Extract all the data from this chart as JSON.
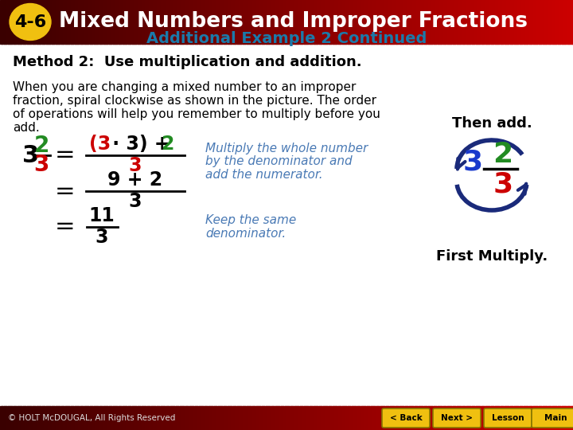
{
  "title_badge": "4-6",
  "title_text": "Mixed Numbers and Improper Fractions",
  "subtitle": "Additional Example 2 Continued",
  "method_heading": "Method 2:  Use multiplication and addition.",
  "body_lines": [
    "When you are changing a mixed number to an improper",
    "fraction, spiral clockwise as shown in the picture. The order",
    "of operations will help you remember to multiply before you",
    "add."
  ],
  "header_bg_left": "#3a0000",
  "header_bg_right": "#cc0000",
  "badge_bg": "#f0c010",
  "badge_text_color": "#000000",
  "header_text_color": "#ffffff",
  "subtitle_color": "#1a7aaa",
  "method_color": "#000000",
  "body_color": "#000000",
  "footer_text": "© HOLT McDOUGAL, All Rights Reserved",
  "bg_color": "#ffffff",
  "italic_text_color": "#4a7ab5",
  "green_color": "#228B22",
  "red_color": "#cc0000",
  "blue_color": "#1a3acc",
  "dark_blue_color": "#1a2a7a",
  "black_color": "#000000"
}
